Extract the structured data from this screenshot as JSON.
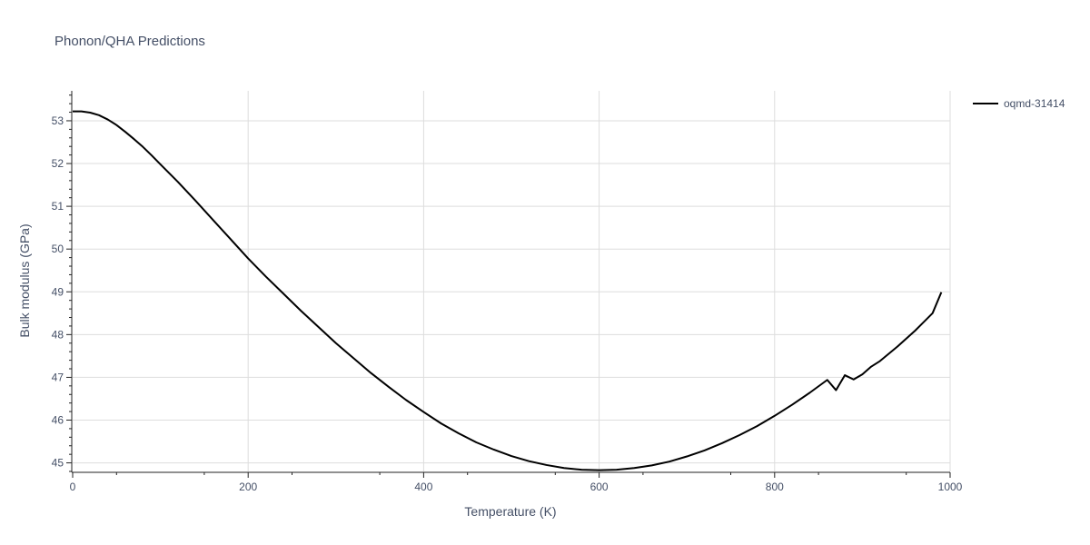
{
  "chart_data": {
    "type": "line",
    "title": "Phonon/QHA Predictions",
    "xlabel": "Temperature (K)",
    "ylabel": "Bulk modulus (GPa)",
    "xlim": [
      0,
      1000
    ],
    "ylim": [
      44.8,
      53.7
    ],
    "x_ticks": [
      0,
      200,
      400,
      600,
      800,
      1000
    ],
    "x_tick_labels": [
      "0",
      "200",
      "400",
      "600",
      "800",
      "1000"
    ],
    "y_ticks": [
      45,
      46,
      47,
      48,
      49,
      50,
      51,
      52,
      53
    ],
    "y_tick_labels": [
      "45",
      "46",
      "47",
      "48",
      "49",
      "50",
      "51",
      "52",
      "53"
    ],
    "grid": true,
    "legend_position": "top-right",
    "series": [
      {
        "name": "oqmd-31414",
        "color": "#000000",
        "x": [
          0,
          10,
          20,
          30,
          40,
          50,
          60,
          70,
          80,
          90,
          100,
          120,
          140,
          160,
          180,
          200,
          220,
          240,
          260,
          280,
          300,
          320,
          340,
          360,
          380,
          400,
          420,
          440,
          460,
          480,
          500,
          520,
          540,
          560,
          580,
          600,
          620,
          640,
          660,
          680,
          700,
          720,
          740,
          760,
          780,
          800,
          820,
          840,
          860,
          870,
          880,
          890,
          900,
          910,
          920,
          940,
          960,
          980,
          990
        ],
        "y": [
          53.22,
          53.22,
          53.19,
          53.13,
          53.03,
          52.9,
          52.74,
          52.57,
          52.39,
          52.19,
          51.98,
          51.57,
          51.13,
          50.68,
          50.23,
          49.78,
          49.36,
          48.96,
          48.56,
          48.18,
          47.8,
          47.45,
          47.1,
          46.78,
          46.47,
          46.19,
          45.92,
          45.69,
          45.48,
          45.31,
          45.16,
          45.04,
          44.95,
          44.88,
          44.84,
          44.83,
          44.84,
          44.88,
          44.94,
          45.03,
          45.15,
          45.29,
          45.46,
          45.65,
          45.86,
          46.1,
          46.36,
          46.64,
          46.94,
          46.7,
          47.05,
          46.95,
          47.07,
          47.25,
          47.38,
          47.72,
          48.09,
          48.5,
          48.99
        ]
      }
    ]
  }
}
